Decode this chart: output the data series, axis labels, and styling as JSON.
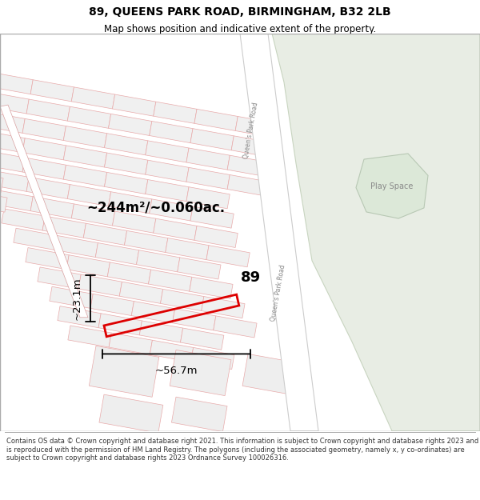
{
  "title_line1": "89, QUEENS PARK ROAD, BIRMINGHAM, B32 2LB",
  "title_line2": "Map shows position and indicative extent of the property.",
  "footer_text": "Contains OS data © Crown copyright and database right 2021. This information is subject to Crown copyright and database rights 2023 and is reproduced with the permission of HM Land Registry. The polygons (including the associated geometry, namely x, y co-ordinates) are subject to Crown copyright and database rights 2023 Ordnance Survey 100026316.",
  "map_bg": "#ffffff",
  "green_area_color": "#e8ede4",
  "building_fill": "#f0f0f0",
  "building_edge": "#e8aaaa",
  "street_edge": "#e8aaaa",
  "red_line_color": "#dd0000",
  "area_label": "~244m²/~0.060ac.",
  "number_label": "89",
  "dim_width": "~56.7m",
  "dim_height": "~23.1m",
  "play_space_label": "Play Space",
  "road_label": "Queen's Park Road",
  "title_fontsize": 10,
  "subtitle_fontsize": 8.5,
  "footer_fontsize": 6.0
}
